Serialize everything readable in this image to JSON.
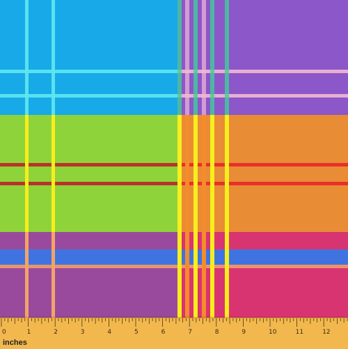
{
  "image": {
    "subject": "plaid fabric swatch with ruler",
    "colors": {
      "block_top_left": "#18a9e8",
      "block_top_right": "#8c57c8",
      "block_mid_left": "#8fd33a",
      "block_mid_right": "#e88c36",
      "block_bottom_left": "#9a4a9c",
      "block_bottom_right": "#d93472",
      "band_blue": "#3f74e0",
      "stripe_cyan": "#5fe8f0",
      "stripe_yellow": "#f7ee1c",
      "stripe_red": "#d82a2a",
      "stripe_pink": "#f2b9d4",
      "stripe_orange": "#f58b2a",
      "ruler_bg": "#f2b84e"
    }
  },
  "ruler": {
    "unit_label": "inches",
    "numbers": [
      "0",
      "1",
      "2",
      "3",
      "4",
      "5",
      "6",
      "7",
      "8",
      "9",
      "10",
      "11",
      "12"
    ]
  }
}
